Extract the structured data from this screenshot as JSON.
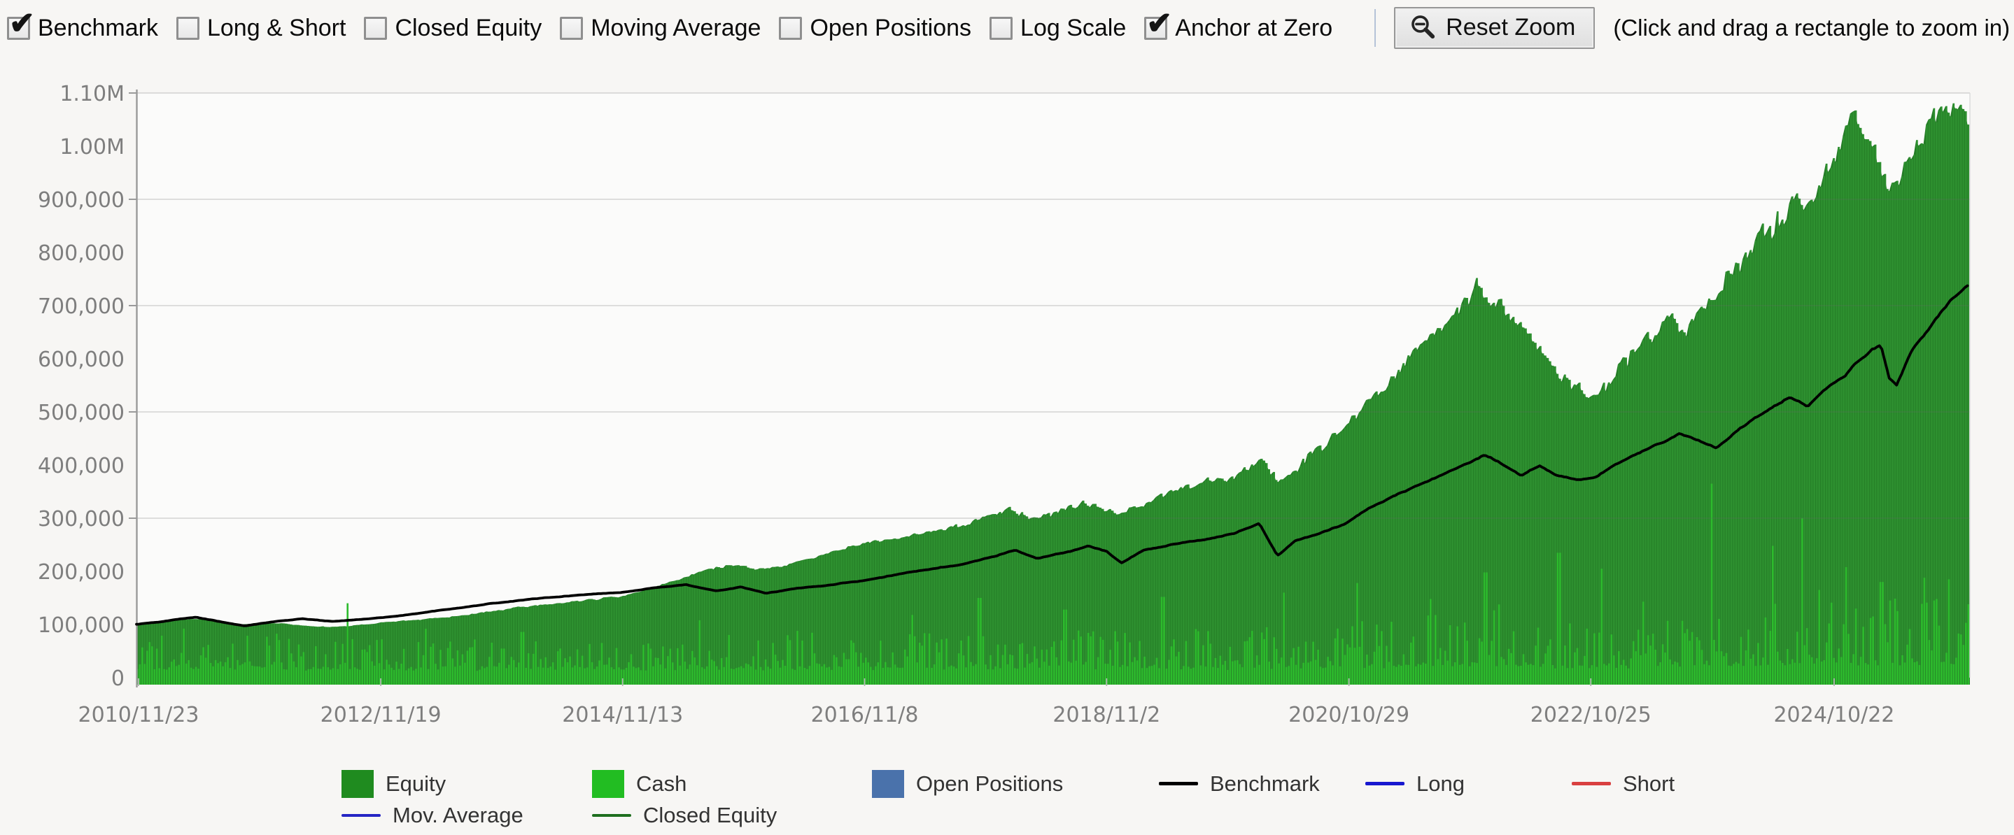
{
  "toolbar": {
    "checkboxes": [
      {
        "label": "Benchmark",
        "checked": true
      },
      {
        "label": "Long & Short",
        "checked": false
      },
      {
        "label": "Closed Equity",
        "checked": false
      },
      {
        "label": "Moving Average",
        "checked": false
      },
      {
        "label": "Open Positions",
        "checked": false
      },
      {
        "label": "Log Scale",
        "checked": false
      },
      {
        "label": "Anchor at Zero",
        "checked": true
      }
    ],
    "reset_zoom_label": "Reset Zoom",
    "hint": "(Click and drag a rectangle to zoom in)"
  },
  "chart_data": {
    "type": "area",
    "title": "",
    "xlabel": "",
    "ylabel": "",
    "x_axis": {
      "tick_labels": [
        "2010/11/23",
        "2012/11/19",
        "2014/11/13",
        "2016/11/8",
        "2018/11/2",
        "2020/10/29",
        "2022/10/25",
        "2024/10/22"
      ],
      "tick_years": [
        2010.897,
        2012.884,
        2014.868,
        2016.853,
        2018.838,
        2020.826,
        2022.81,
        2024.806
      ],
      "domain_years": [
        2010.88,
        2025.92
      ]
    },
    "y_axis": {
      "tick_labels": [
        "0",
        "100,000",
        "200,000",
        "300,000",
        "400,000",
        "500,000",
        "600,000",
        "700,000",
        "800,000",
        "900,000",
        "1.00M",
        "1.10M"
      ],
      "tick_values": [
        0,
        100000,
        200000,
        300000,
        400000,
        500000,
        600000,
        700000,
        800000,
        900000,
        1000000,
        1100000
      ],
      "gridline_values": [
        300000,
        500000,
        700000,
        900000,
        1100000
      ],
      "range": [
        0,
        1100000
      ],
      "grid": true
    },
    "series": [
      {
        "name": "Equity",
        "type": "area-bars",
        "anchors": [
          [
            2010.88,
            100000
          ],
          [
            2011.2,
            107000
          ],
          [
            2011.45,
            111000
          ],
          [
            2011.7,
            100000
          ],
          [
            2011.95,
            104000
          ],
          [
            2012.2,
            99000
          ],
          [
            2012.5,
            95000
          ],
          [
            2012.8,
            101000
          ],
          [
            2013.1,
            107000
          ],
          [
            2013.4,
            113000
          ],
          [
            2013.7,
            121000
          ],
          [
            2014.0,
            131000
          ],
          [
            2014.3,
            139000
          ],
          [
            2014.6,
            146000
          ],
          [
            2014.87,
            154000
          ],
          [
            2015.1,
            168000
          ],
          [
            2015.35,
            186000
          ],
          [
            2015.6,
            207000
          ],
          [
            2015.8,
            213000
          ],
          [
            2016.0,
            203000
          ],
          [
            2016.25,
            212000
          ],
          [
            2016.5,
            232000
          ],
          [
            2016.85,
            252000
          ],
          [
            2017.1,
            262000
          ],
          [
            2017.35,
            272000
          ],
          [
            2017.6,
            285000
          ],
          [
            2017.85,
            302000
          ],
          [
            2018.05,
            315000
          ],
          [
            2018.25,
            298000
          ],
          [
            2018.45,
            312000
          ],
          [
            2018.65,
            332000
          ],
          [
            2018.8,
            320000
          ],
          [
            2018.97,
            304000
          ],
          [
            2019.2,
            335000
          ],
          [
            2019.45,
            356000
          ],
          [
            2019.7,
            372000
          ],
          [
            2019.95,
            388000
          ],
          [
            2020.12,
            408000
          ],
          [
            2020.25,
            368000
          ],
          [
            2020.4,
            395000
          ],
          [
            2020.6,
            430000
          ],
          [
            2020.8,
            470000
          ],
          [
            2020.95,
            505000
          ],
          [
            2021.15,
            560000
          ],
          [
            2021.35,
            610000
          ],
          [
            2021.55,
            655000
          ],
          [
            2021.75,
            700000
          ],
          [
            2021.9,
            733000
          ],
          [
            2022.05,
            705000
          ],
          [
            2022.2,
            668000
          ],
          [
            2022.4,
            620000
          ],
          [
            2022.55,
            580000
          ],
          [
            2022.7,
            540000
          ],
          [
            2022.85,
            530000
          ],
          [
            2023.0,
            570000
          ],
          [
            2023.15,
            610000
          ],
          [
            2023.3,
            650000
          ],
          [
            2023.45,
            685000
          ],
          [
            2023.6,
            660000
          ],
          [
            2023.75,
            700000
          ],
          [
            2023.9,
            745000
          ],
          [
            2024.05,
            785000
          ],
          [
            2024.2,
            825000
          ],
          [
            2024.35,
            870000
          ],
          [
            2024.5,
            910000
          ],
          [
            2024.62,
            878000
          ],
          [
            2024.75,
            960000
          ],
          [
            2024.87,
            1015000
          ],
          [
            2024.97,
            1048000
          ],
          [
            2025.08,
            1005000
          ],
          [
            2025.2,
            952000
          ],
          [
            2025.3,
            908000
          ],
          [
            2025.42,
            968000
          ],
          [
            2025.54,
            1020000
          ],
          [
            2025.65,
            1062000
          ],
          [
            2025.74,
            1088000
          ],
          [
            2025.82,
            1042000
          ],
          [
            2025.92,
            1072000
          ]
        ]
      },
      {
        "name": "Cash",
        "type": "bars",
        "base_fraction_of_equity": [
          [
            2010.88,
            0.8
          ],
          [
            2013.0,
            0.62
          ],
          [
            2015.0,
            0.42
          ],
          [
            2017.0,
            0.3
          ],
          [
            2019.0,
            0.25
          ],
          [
            2021.0,
            0.2
          ],
          [
            2023.0,
            0.17
          ],
          [
            2025.92,
            0.15
          ]
        ],
        "spikes": [
          [
            2012.62,
            140000
          ],
          [
            2013.25,
            92000
          ],
          [
            2014.05,
            86000
          ],
          [
            2015.5,
            108000
          ],
          [
            2016.3,
            88000
          ],
          [
            2017.25,
            118000
          ],
          [
            2017.8,
            150000
          ],
          [
            2018.5,
            128000
          ],
          [
            2019.3,
            152000
          ],
          [
            2020.3,
            160000
          ],
          [
            2020.9,
            178000
          ],
          [
            2021.5,
            148000
          ],
          [
            2021.95,
            198000
          ],
          [
            2022.55,
            235000
          ],
          [
            2022.9,
            205000
          ],
          [
            2023.25,
            143000
          ],
          [
            2023.8,
            365000
          ],
          [
            2024.3,
            248000
          ],
          [
            2024.55,
            300000
          ],
          [
            2024.68,
            165000
          ],
          [
            2024.9,
            208000
          ],
          [
            2025.2,
            180000
          ],
          [
            2025.55,
            188000
          ],
          [
            2025.75,
            185000
          ]
        ]
      },
      {
        "name": "Benchmark",
        "type": "line",
        "anchors": [
          [
            2010.88,
            100000
          ],
          [
            2011.15,
            107000
          ],
          [
            2011.38,
            114000
          ],
          [
            2011.6,
            104000
          ],
          [
            2011.78,
            97000
          ],
          [
            2012.0,
            105000
          ],
          [
            2012.25,
            111000
          ],
          [
            2012.5,
            106000
          ],
          [
            2012.75,
            110000
          ],
          [
            2013.0,
            115000
          ],
          [
            2013.3,
            124000
          ],
          [
            2013.6,
            133000
          ],
          [
            2013.9,
            142000
          ],
          [
            2014.2,
            149000
          ],
          [
            2014.5,
            155000
          ],
          [
            2014.87,
            161000
          ],
          [
            2015.15,
            169000
          ],
          [
            2015.4,
            175000
          ],
          [
            2015.65,
            163000
          ],
          [
            2015.85,
            171000
          ],
          [
            2016.05,
            158000
          ],
          [
            2016.3,
            168000
          ],
          [
            2016.6,
            175000
          ],
          [
            2016.85,
            183000
          ],
          [
            2017.1,
            193000
          ],
          [
            2017.4,
            204000
          ],
          [
            2017.7,
            215000
          ],
          [
            2017.95,
            230000
          ],
          [
            2018.1,
            240000
          ],
          [
            2018.28,
            224000
          ],
          [
            2018.5,
            234000
          ],
          [
            2018.7,
            247000
          ],
          [
            2018.85,
            237000
          ],
          [
            2018.97,
            216000
          ],
          [
            2019.15,
            240000
          ],
          [
            2019.4,
            252000
          ],
          [
            2019.65,
            260000
          ],
          [
            2019.9,
            272000
          ],
          [
            2020.1,
            290000
          ],
          [
            2020.18,
            258000
          ],
          [
            2020.25,
            230000
          ],
          [
            2020.4,
            258000
          ],
          [
            2020.6,
            272000
          ],
          [
            2020.8,
            288000
          ],
          [
            2021.0,
            318000
          ],
          [
            2021.2,
            342000
          ],
          [
            2021.4,
            362000
          ],
          [
            2021.6,
            382000
          ],
          [
            2021.8,
            402000
          ],
          [
            2021.95,
            420000
          ],
          [
            2022.1,
            402000
          ],
          [
            2022.25,
            382000
          ],
          [
            2022.4,
            398000
          ],
          [
            2022.55,
            380000
          ],
          [
            2022.7,
            372000
          ],
          [
            2022.85,
            375000
          ],
          [
            2023.0,
            398000
          ],
          [
            2023.2,
            422000
          ],
          [
            2023.4,
            442000
          ],
          [
            2023.55,
            458000
          ],
          [
            2023.7,
            448000
          ],
          [
            2023.85,
            432000
          ],
          [
            2024.0,
            462000
          ],
          [
            2024.15,
            486000
          ],
          [
            2024.3,
            508000
          ],
          [
            2024.45,
            528000
          ],
          [
            2024.6,
            512000
          ],
          [
            2024.75,
            545000
          ],
          [
            2024.9,
            568000
          ],
          [
            2025.02,
            598000
          ],
          [
            2025.12,
            618000
          ],
          [
            2025.2,
            628000
          ],
          [
            2025.27,
            565000
          ],
          [
            2025.33,
            552000
          ],
          [
            2025.45,
            612000
          ],
          [
            2025.58,
            652000
          ],
          [
            2025.7,
            690000
          ],
          [
            2025.8,
            718000
          ],
          [
            2025.92,
            740000
          ]
        ]
      }
    ],
    "noise_amplitude_profile": [
      [
        2011.0,
        0.012
      ],
      [
        2015.0,
        0.02
      ],
      [
        2018.0,
        0.028
      ],
      [
        2020.0,
        0.035
      ],
      [
        2022.0,
        0.04
      ],
      [
        2024.0,
        0.045
      ],
      [
        2025.9,
        0.05
      ]
    ],
    "colors": {
      "equity_fill": "#2e9130",
      "equity_dark": "#247c26",
      "cash": "#2dbb2d",
      "benchmark": "#000000",
      "grid": "#c9c9c9",
      "axis": "#9a9a9a",
      "tick_label": "#7e7e7e",
      "plot_background": "#fbfbfa"
    },
    "legend_position": "bottom"
  },
  "legend": {
    "rows": [
      [
        {
          "label": "Equity",
          "swatch": "box",
          "color": "#1f8b1f"
        },
        {
          "label": "Cash",
          "swatch": "box",
          "color": "#22bd22"
        },
        {
          "label": "Open Positions",
          "swatch": "box",
          "color": "#4a72ab"
        },
        {
          "label": "Benchmark",
          "swatch": "line",
          "color": "#000000"
        },
        {
          "label": "Long",
          "swatch": "line",
          "color": "#1818cf"
        },
        {
          "label": "Short",
          "swatch": "line",
          "color": "#d94040"
        }
      ],
      [
        {
          "label": "Mov. Average",
          "swatch": "line",
          "color": "#2525c4"
        },
        {
          "label": "Closed Equity",
          "swatch": "line",
          "color": "#1e6f1e"
        }
      ]
    ]
  }
}
